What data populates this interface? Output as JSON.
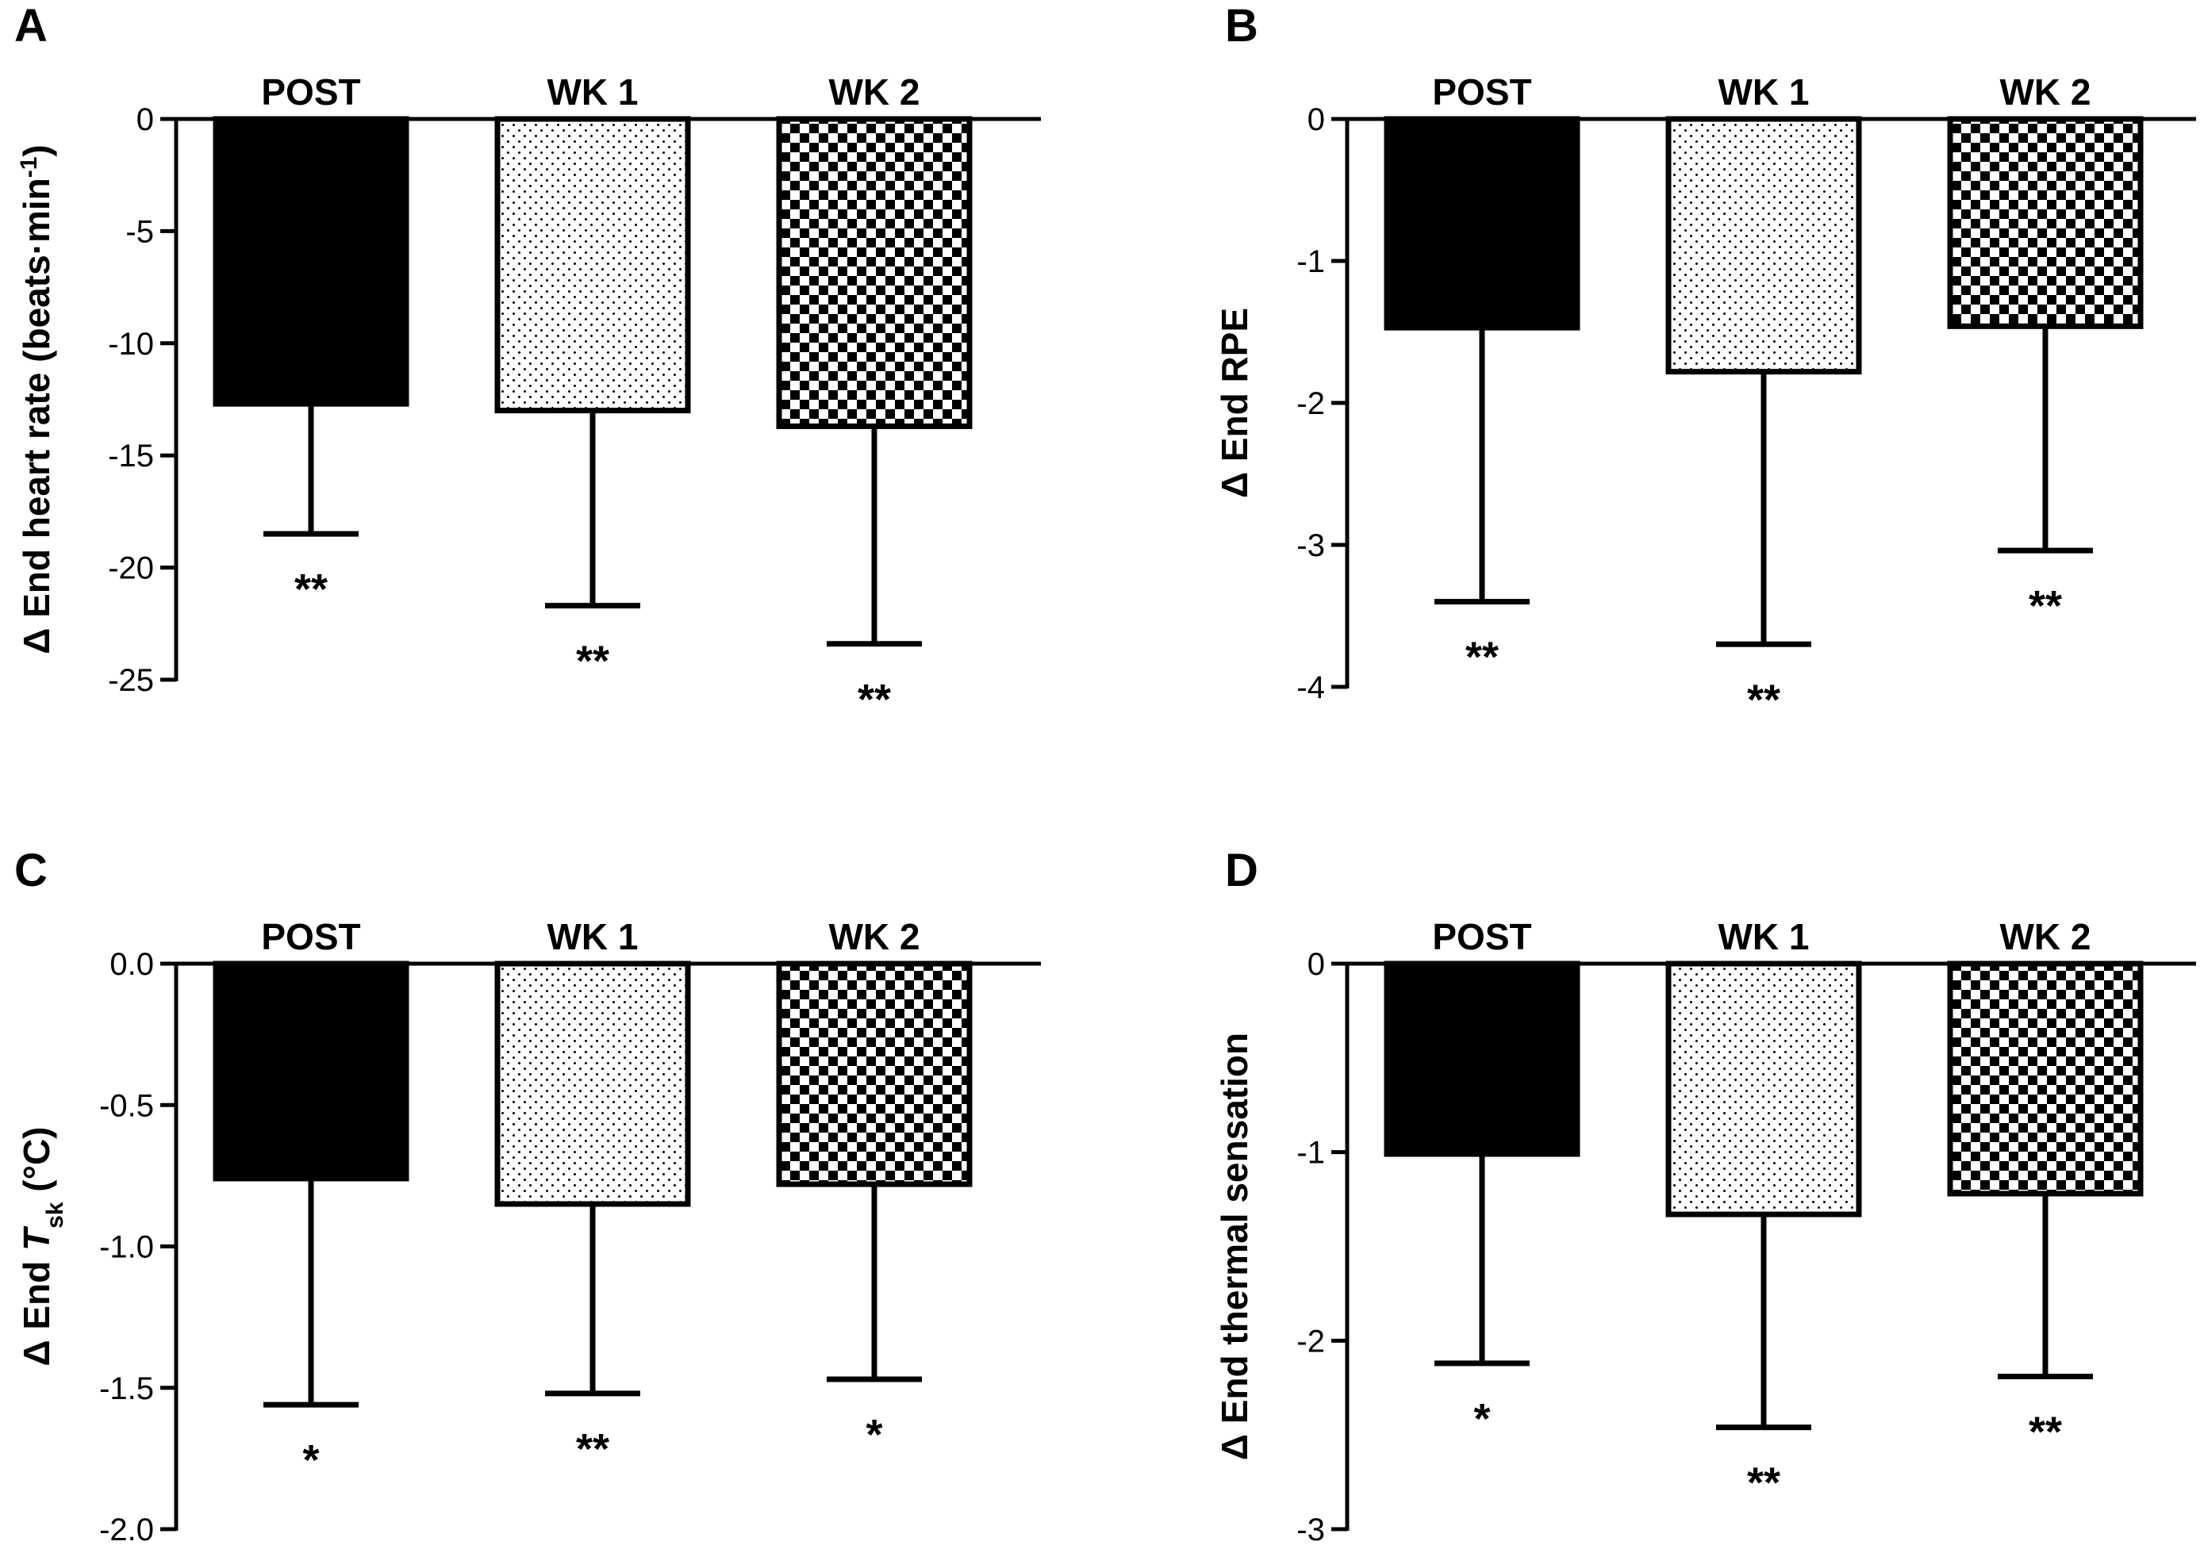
{
  "figure": {
    "colors": {
      "ink": "#000000",
      "background": "#ffffff"
    },
    "bar_styles": [
      "solid",
      "dotted",
      "checkered"
    ]
  },
  "chart_data": [
    {
      "panel": "A",
      "type": "bar",
      "categories": [
        "POST",
        "WK 1",
        "WK 2"
      ],
      "values": [
        -12.7,
        -13.0,
        -13.7
      ],
      "error_lower": [
        -18.5,
        -21.7,
        -23.4
      ],
      "significance": [
        "**",
        "**",
        "**"
      ],
      "ylabel_parts": [
        {
          "t": "Δ End heart rate (beats·min"
        },
        {
          "t": "-1",
          "sup": true
        },
        {
          "t": ")"
        }
      ],
      "ylim": [
        -25,
        0
      ],
      "ticks": [
        0,
        -5,
        -10,
        -15,
        -20,
        -25
      ],
      "tick_labels": [
        "0",
        "-5",
        "-10",
        "-15",
        "-20",
        "-25"
      ]
    },
    {
      "panel": "B",
      "type": "bar",
      "categories": [
        "POST",
        "WK 1",
        "WK 2"
      ],
      "values": [
        -1.47,
        -1.78,
        -1.46
      ],
      "error_lower": [
        -3.4,
        -3.7,
        -3.04
      ],
      "significance": [
        "**",
        "**",
        "**"
      ],
      "ylabel_parts": [
        {
          "t": "Δ End RPE"
        }
      ],
      "ylim": [
        -4,
        0
      ],
      "ticks": [
        0,
        -1,
        -2,
        -3,
        -4
      ],
      "tick_labels": [
        "0",
        "-1",
        "-2",
        "-3",
        "-4"
      ]
    },
    {
      "panel": "C",
      "type": "bar",
      "categories": [
        "POST",
        "WK 1",
        "WK 2"
      ],
      "values": [
        -0.76,
        -0.85,
        -0.78
      ],
      "error_lower": [
        -1.56,
        -1.52,
        -1.47
      ],
      "significance": [
        "*",
        "**",
        "*"
      ],
      "ylabel_parts": [
        {
          "t": "Δ End "
        },
        {
          "t": "T",
          "italic": true
        },
        {
          "t": "sk",
          "sub": true
        },
        {
          "t": " (°C)"
        }
      ],
      "ylim": [
        -2.0,
        0.0
      ],
      "ticks": [
        0,
        -0.5,
        -1.0,
        -1.5,
        -2.0
      ],
      "tick_labels": [
        "0.0",
        "-0.5",
        "-1.0",
        "-1.5",
        "-2.0"
      ]
    },
    {
      "panel": "D",
      "type": "bar",
      "categories": [
        "POST",
        "WK 1",
        "WK 2"
      ],
      "values": [
        -1.01,
        -1.33,
        -1.22
      ],
      "error_lower": [
        -2.12,
        -2.46,
        -2.19
      ],
      "significance": [
        "*",
        "**",
        "**"
      ],
      "ylabel_parts": [
        {
          "t": "Δ End thermal sensation"
        }
      ],
      "ylim": [
        -3,
        0
      ],
      "ticks": [
        0,
        -1,
        -2,
        -3
      ],
      "tick_labels": [
        "0",
        "-1",
        "-2",
        "-3"
      ]
    }
  ]
}
